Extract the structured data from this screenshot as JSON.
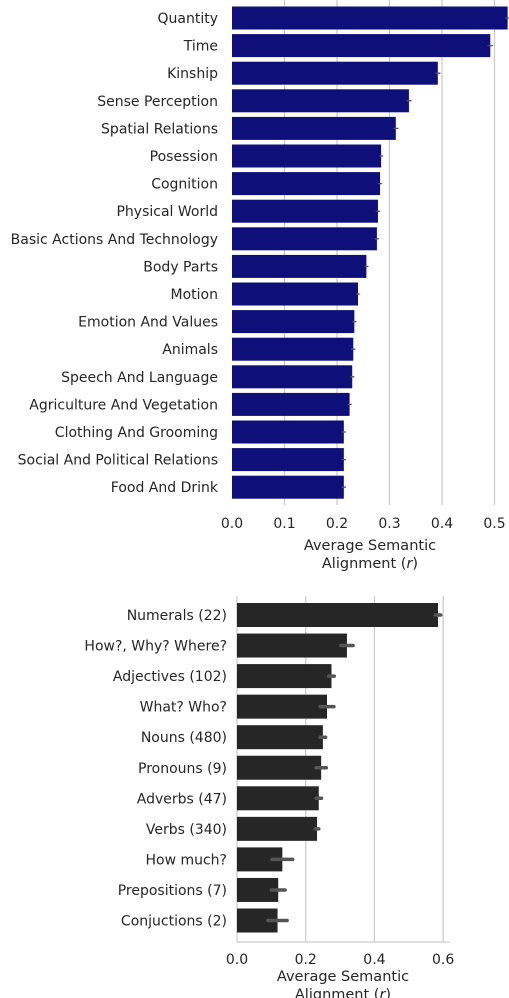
{
  "chart_data": [
    {
      "type": "bar",
      "orientation": "horizontal",
      "categories": [
        "Quantity",
        "Time",
        "Kinship",
        "Sense Perception",
        "Spatial Relations",
        "Posession",
        "Cognition",
        "Physical World",
        "Basic Actions And Technology",
        "Body Parts",
        "Motion",
        "Emotion And Values",
        "Animals",
        "Speech And Language",
        "Agriculture And Vegetation",
        "Clothing And Grooming",
        "Social And Political Relations",
        "Food And Drink"
      ],
      "values": [
        0.525,
        0.492,
        0.392,
        0.337,
        0.312,
        0.284,
        0.282,
        0.278,
        0.276,
        0.256,
        0.24,
        0.233,
        0.231,
        0.229,
        0.224,
        0.213,
        0.213,
        0.213
      ],
      "errors": [
        0.004,
        0.004,
        0.004,
        0.004,
        0.004,
        0.003,
        0.003,
        0.003,
        0.003,
        0.003,
        0.003,
        0.003,
        0.003,
        0.003,
        0.003,
        0.003,
        0.003,
        0.003
      ],
      "xticks": [
        "0.0",
        "0.1",
        "0.2",
        "0.3",
        "0.4",
        "0.5"
      ],
      "xlim": [
        0,
        0.52
      ],
      "xlabel_line1": "Average Semantic",
      "xlabel_line2": "Alignment (",
      "xlabel_var": "r",
      "xlabel_end": ")",
      "bar_color": "#0e0f78",
      "error_color": "#555555",
      "grid": true
    },
    {
      "type": "bar",
      "orientation": "horizontal",
      "categories": [
        "Numerals (22)",
        "How?, Why? Where?",
        "Adjectives (102)",
        "What? Who?",
        "Nouns (480)",
        "Pronouns (9)",
        "Adverbs (47)",
        "Verbs (340)",
        "How much?",
        "Prepositions (7)",
        "Conjuctions (2)"
      ],
      "values": [
        0.585,
        0.32,
        0.275,
        0.262,
        0.25,
        0.245,
        0.238,
        0.233,
        0.132,
        0.12,
        0.118
      ],
      "errors": [
        0.008,
        0.018,
        0.008,
        0.02,
        0.008,
        0.015,
        0.008,
        0.005,
        0.03,
        0.02,
        0.028
      ],
      "xticks": [
        "0.0",
        "0.2",
        "0.4",
        "0.6"
      ],
      "xlim": [
        0,
        0.62
      ],
      "xlabel_line1": "Average Semantic",
      "xlabel_line2": "Alignment (",
      "xlabel_var": "r",
      "xlabel_end": ")",
      "bar_color": "#262626",
      "error_color": "#555555",
      "grid": true
    }
  ]
}
